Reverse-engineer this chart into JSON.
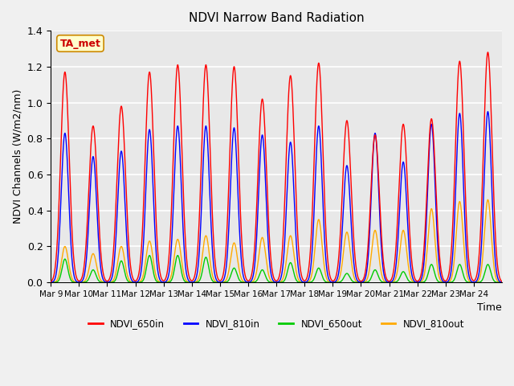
{
  "title": "NDVI Narrow Band Radiation",
  "xlabel": "Time",
  "ylabel": "NDVI Channels (W/m2/nm)",
  "ylim": [
    0.0,
    1.4
  ],
  "annotation": "TA_met",
  "legend_labels": [
    "NDVI_650in",
    "NDVI_810in",
    "NDVI_650out",
    "NDVI_810out"
  ],
  "line_colors": [
    "#ff0000",
    "#0000ff",
    "#00cc00",
    "#ffaa00"
  ],
  "x_tick_labels": [
    "Mar 9",
    "Mar 10",
    "Mar 11",
    "Mar 12",
    "Mar 13",
    "Mar 14",
    "Mar 15",
    "Mar 16",
    "Mar 17",
    "Mar 18",
    "Mar 19",
    "Mar 20",
    "Mar 21",
    "Mar 22",
    "Mar 23",
    "Mar 24"
  ],
  "background_color": "#e8e8e8",
  "axes_background": "#e8e8e8",
  "grid_color": "#ffffff",
  "day_peaks_650in": [
    1.17,
    0.87,
    0.98,
    1.17,
    1.21,
    1.21,
    1.2,
    1.02,
    1.15,
    1.22,
    0.9,
    0.82,
    0.88,
    0.91,
    1.23,
    1.28
  ],
  "day_peaks_810in": [
    0.83,
    0.7,
    0.73,
    0.85,
    0.87,
    0.87,
    0.86,
    0.82,
    0.78,
    0.87,
    0.65,
    0.83,
    0.67,
    0.88,
    0.94,
    0.95
  ],
  "day_peaks_650out": [
    0.13,
    0.07,
    0.12,
    0.15,
    0.15,
    0.14,
    0.08,
    0.07,
    0.11,
    0.08,
    0.05,
    0.07,
    0.06,
    0.1,
    0.1,
    0.1
  ],
  "day_peaks_810out": [
    0.2,
    0.16,
    0.2,
    0.23,
    0.24,
    0.26,
    0.22,
    0.25,
    0.26,
    0.35,
    0.28,
    0.29,
    0.29,
    0.41,
    0.45,
    0.46
  ]
}
